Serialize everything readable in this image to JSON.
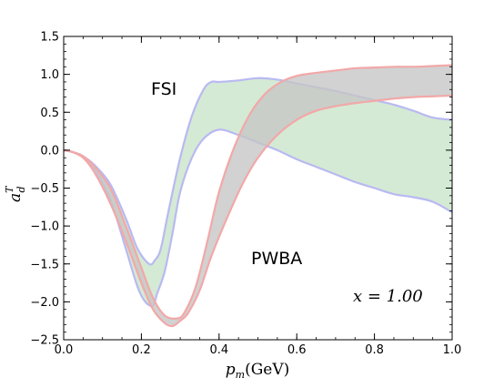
{
  "chart_data": {
    "type": "area",
    "xlabel": {
      "symbol": "p",
      "subscript": "m",
      "unit": "(GeV)"
    },
    "ylabel": {
      "symbol": "a",
      "subscript": "d",
      "superscript": "T"
    },
    "xlim": [
      0.0,
      1.0
    ],
    "ylim": [
      -2.5,
      1.5
    ],
    "xticks": [
      0.0,
      0.2,
      0.4,
      0.6,
      0.8,
      1.0
    ],
    "xtick_labels": [
      "0.0",
      "0.2",
      "0.4",
      "0.6",
      "0.8",
      "1.0"
    ],
    "yticks": [
      1.5,
      1.0,
      0.5,
      0.0,
      -0.5,
      -1.0,
      -1.5,
      -2.0,
      -2.5
    ],
    "ytick_labels": [
      "1.5",
      "1.0",
      "0.5",
      "0.0",
      "−0.5",
      "−1.0",
      "−1.5",
      "−2.0",
      "−2.5"
    ],
    "annotations": [
      {
        "text": "FSI",
        "x": 0.22,
        "y": 0.8
      },
      {
        "text": "PWBA",
        "x": 0.49,
        "y": -1.45
      },
      {
        "text": "x = 1.00",
        "x": 0.88,
        "y": -1.95
      }
    ],
    "series": [
      {
        "name": "FSI",
        "fill_color": "#cfe8cf",
        "edge_color": "#b9b9f2",
        "upper": {
          "x": [
            0.0,
            0.02,
            0.05,
            0.08,
            0.12,
            0.16,
            0.19,
            0.22,
            0.235,
            0.25,
            0.27,
            0.3,
            0.33,
            0.36,
            0.38,
            0.4,
            0.45,
            0.5,
            0.55,
            0.6,
            0.65,
            0.7,
            0.75,
            0.8,
            0.85,
            0.9,
            0.95,
            1.0
          ],
          "y": [
            0.0,
            -0.02,
            -0.08,
            -0.2,
            -0.45,
            -0.9,
            -1.3,
            -1.5,
            -1.45,
            -1.3,
            -0.8,
            -0.1,
            0.45,
            0.8,
            0.9,
            0.9,
            0.92,
            0.95,
            0.93,
            0.88,
            0.83,
            0.78,
            0.72,
            0.66,
            0.6,
            0.52,
            0.43,
            0.4
          ]
        },
        "lower": {
          "x": [
            0.0,
            0.02,
            0.05,
            0.08,
            0.12,
            0.16,
            0.19,
            0.21,
            0.23,
            0.24,
            0.26,
            0.28,
            0.3,
            0.33,
            0.36,
            0.4,
            0.45,
            0.5,
            0.55,
            0.6,
            0.65,
            0.7,
            0.75,
            0.8,
            0.85,
            0.9,
            0.95,
            1.0
          ],
          "y": [
            0.0,
            -0.02,
            -0.08,
            -0.25,
            -0.65,
            -1.3,
            -1.8,
            -2.0,
            -2.05,
            -1.9,
            -1.6,
            -1.1,
            -0.55,
            -0.1,
            0.15,
            0.27,
            0.2,
            0.1,
            0.0,
            -0.12,
            -0.22,
            -0.32,
            -0.42,
            -0.5,
            -0.58,
            -0.62,
            -0.68,
            -0.82
          ]
        }
      },
      {
        "name": "PWBA",
        "fill_color": "#c5c5c5",
        "edge_color": "#f2a8a8",
        "upper": {
          "x": [
            0.0,
            0.02,
            0.05,
            0.08,
            0.12,
            0.16,
            0.2,
            0.23,
            0.26,
            0.29,
            0.31,
            0.34,
            0.37,
            0.4,
            0.44,
            0.48,
            0.52,
            0.56,
            0.6,
            0.65,
            0.7,
            0.75,
            0.8,
            0.85,
            0.9,
            0.95,
            1.0
          ],
          "y": [
            0.0,
            -0.02,
            -0.08,
            -0.22,
            -0.5,
            -1.0,
            -1.55,
            -1.95,
            -2.18,
            -2.22,
            -2.15,
            -1.8,
            -1.2,
            -0.55,
            0.05,
            0.48,
            0.75,
            0.9,
            0.98,
            1.02,
            1.05,
            1.08,
            1.09,
            1.1,
            1.1,
            1.11,
            1.12
          ]
        },
        "lower": {
          "x": [
            0.0,
            0.02,
            0.05,
            0.08,
            0.12,
            0.16,
            0.2,
            0.23,
            0.26,
            0.28,
            0.3,
            0.32,
            0.35,
            0.38,
            0.42,
            0.46,
            0.5,
            0.55,
            0.6,
            0.65,
            0.7,
            0.75,
            0.8,
            0.85,
            0.9,
            0.95,
            1.0
          ],
          "y": [
            0.0,
            -0.02,
            -0.1,
            -0.3,
            -0.7,
            -1.2,
            -1.75,
            -2.1,
            -2.28,
            -2.32,
            -2.25,
            -2.15,
            -1.85,
            -1.4,
            -0.9,
            -0.45,
            -0.1,
            0.2,
            0.4,
            0.52,
            0.58,
            0.62,
            0.65,
            0.68,
            0.7,
            0.71,
            0.72
          ]
        }
      }
    ]
  }
}
